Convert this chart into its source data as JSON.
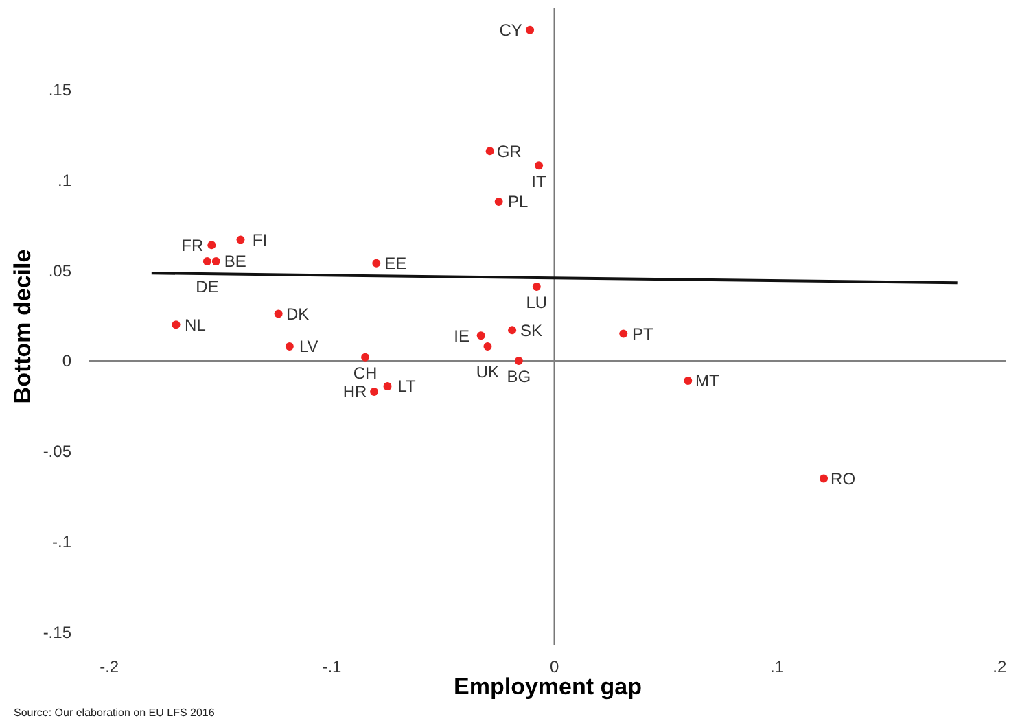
{
  "chart_data": {
    "type": "scatter",
    "xlabel": "Employment gap",
    "ylabel": "Bottom decile",
    "xlim": [
      -0.209,
      0.203
    ],
    "ylim": [
      -0.157,
      0.195
    ],
    "xticks": [
      {
        "value": -0.2,
        "label": "-.2"
      },
      {
        "value": -0.1,
        "label": "-.1"
      },
      0,
      {
        "value": 0.1,
        "label": ".1"
      },
      {
        "value": 0.2,
        "label": ".2"
      }
    ],
    "yticks": [
      {
        "value": -0.15,
        "label": "-.15"
      },
      {
        "value": -0.1,
        "label": "-.1"
      },
      {
        "value": -0.05,
        "label": "-.05"
      },
      0,
      {
        "value": 0.05,
        "label": ".05"
      },
      {
        "value": 0.1,
        "label": ".1"
      },
      {
        "value": 0.15,
        "label": ".15"
      }
    ],
    "grid": false,
    "series": [
      {
        "marker": "circle",
        "color": "#ee2222",
        "x": [
          -0.011,
          -0.029,
          -0.007,
          -0.025,
          -0.154,
          -0.141,
          -0.156,
          -0.152,
          -0.08,
          -0.008,
          -0.124,
          -0.17,
          -0.119,
          -0.085,
          -0.081,
          -0.075,
          -0.033,
          -0.019,
          -0.03,
          -0.016,
          0.031,
          0.06,
          0.121
        ],
        "values": [
          0.183,
          0.116,
          0.108,
          0.088,
          0.064,
          0.067,
          0.055,
          0.055,
          0.054,
          0.041,
          0.026,
          0.02,
          0.008,
          0.002,
          -0.017,
          -0.014,
          0.014,
          0.017,
          0.008,
          0.0,
          0.015,
          -0.011,
          -0.065
        ]
      },
      {
        "type": "line",
        "marker": "none",
        "color": "#111111",
        "x": [
          -0.181,
          0.181
        ],
        "values": [
          0.0485,
          0.0432
        ]
      }
    ],
    "ref_lines": [
      {
        "axis": "x",
        "value": 0,
        "color": "#777777"
      },
      {
        "axis": "y",
        "value": 0,
        "color": "#808080"
      }
    ],
    "annotations": [
      {
        "text": "CY",
        "x": -0.011,
        "y": 0.183
      },
      {
        "text": "GR",
        "x": -0.029,
        "y": 0.116
      },
      {
        "text": "IT",
        "x": -0.007,
        "y": 0.108
      },
      {
        "text": "PL",
        "x": -0.025,
        "y": 0.088
      },
      {
        "text": "FR",
        "x": -0.154,
        "y": 0.064
      },
      {
        "text": "FI",
        "x": -0.141,
        "y": 0.067
      },
      {
        "text": "DE",
        "x": -0.156,
        "y": 0.055
      },
      {
        "text": "BE",
        "x": -0.152,
        "y": 0.055
      },
      {
        "text": "EE",
        "x": -0.08,
        "y": 0.054
      },
      {
        "text": "LU",
        "x": -0.008,
        "y": 0.041
      },
      {
        "text": "DK",
        "x": -0.124,
        "y": 0.026
      },
      {
        "text": "NL",
        "x": -0.17,
        "y": 0.02
      },
      {
        "text": "LV",
        "x": -0.119,
        "y": 0.008
      },
      {
        "text": "CH",
        "x": -0.085,
        "y": 0.002
      },
      {
        "text": "HR",
        "x": -0.081,
        "y": -0.017
      },
      {
        "text": "LT",
        "x": -0.075,
        "y": -0.014
      },
      {
        "text": "IE",
        "x": -0.033,
        "y": 0.014
      },
      {
        "text": "SK",
        "x": -0.019,
        "y": 0.017
      },
      {
        "text": "UK",
        "x": -0.03,
        "y": 0.008
      },
      {
        "text": "BG",
        "x": -0.016,
        "y": 0.0
      },
      {
        "text": "PT",
        "x": 0.031,
        "y": 0.015
      },
      {
        "text": "MT",
        "x": 0.06,
        "y": -0.011
      },
      {
        "text": "RO",
        "x": 0.121,
        "y": -0.065
      },
      "Source: Our elaboration on EU LFS 2016"
    ]
  }
}
